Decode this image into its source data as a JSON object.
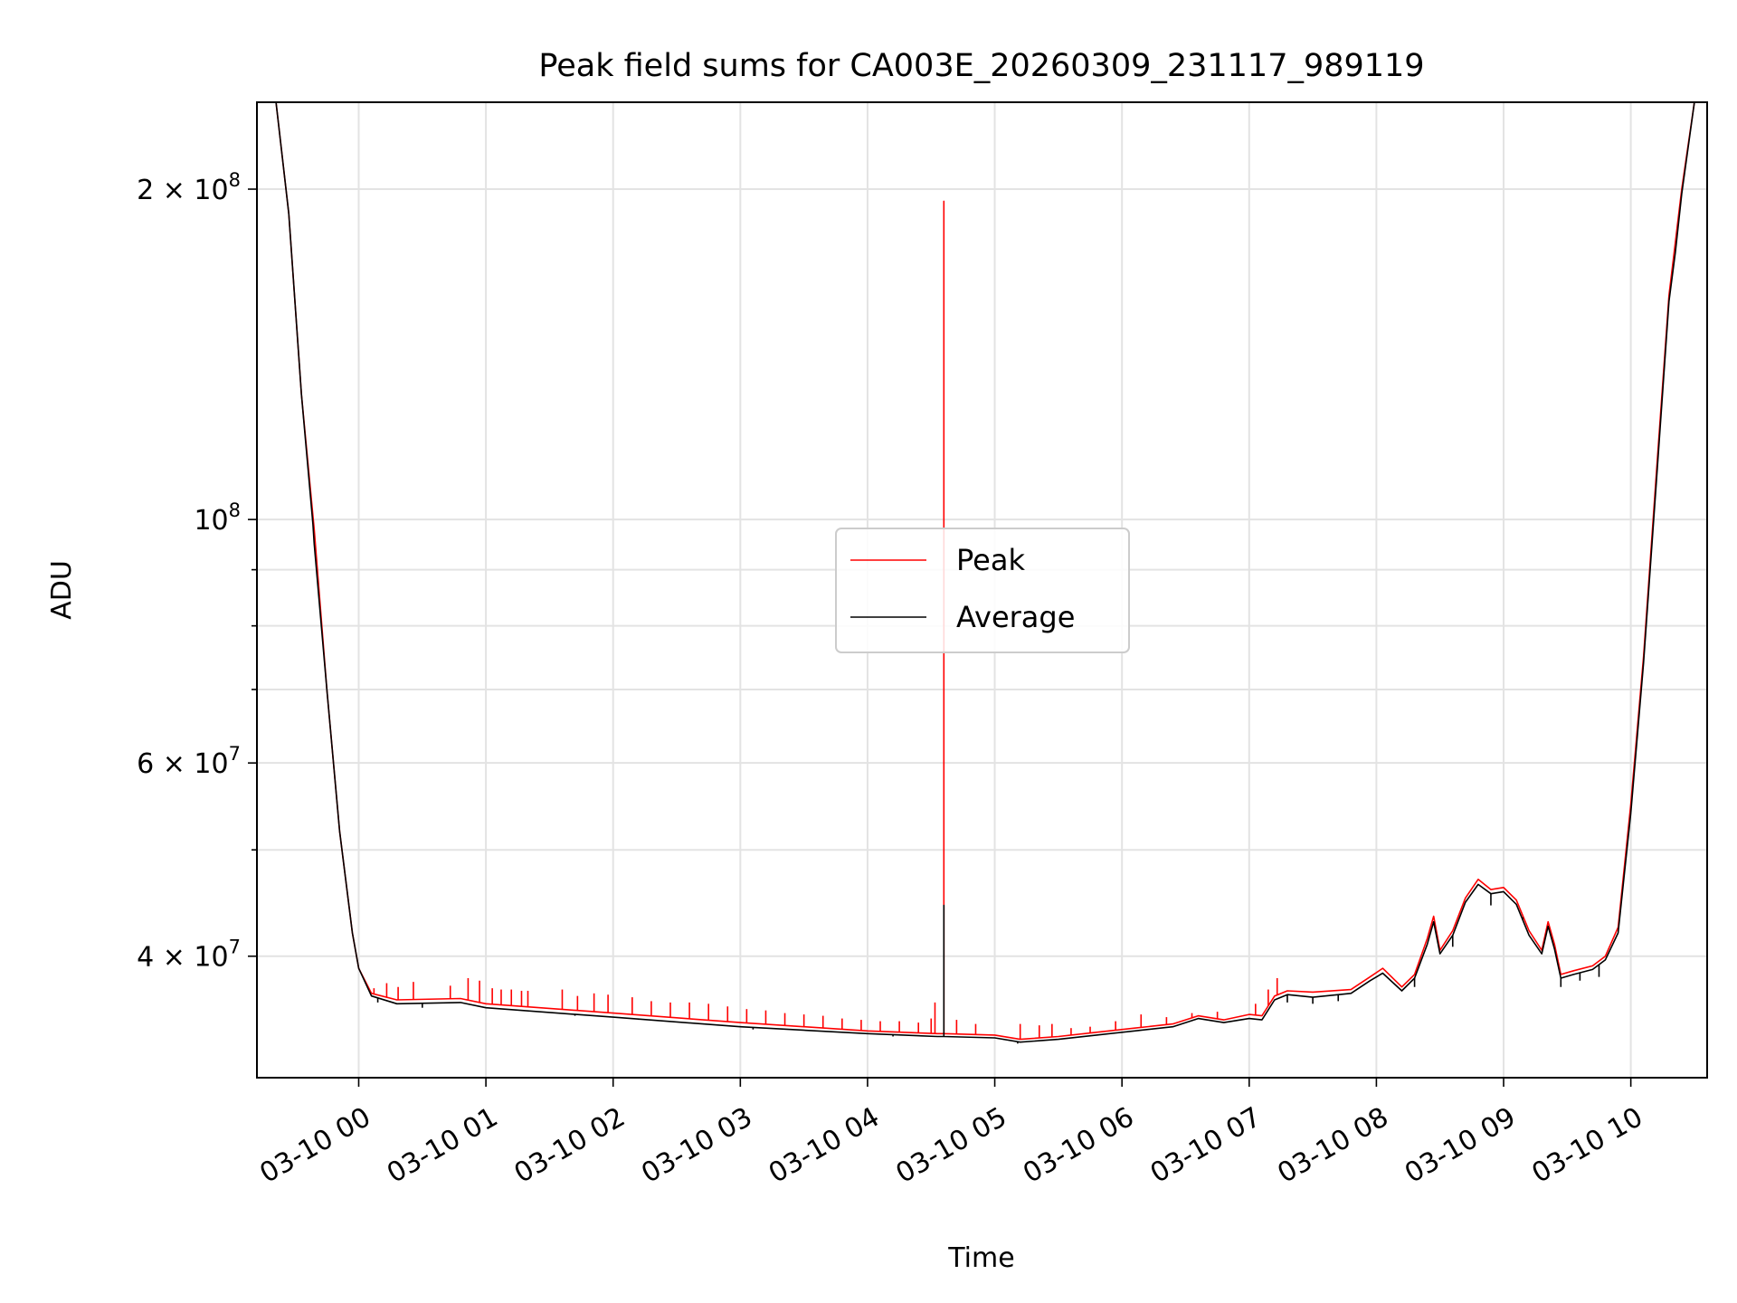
{
  "chart_data": {
    "type": "line",
    "title": "Peak field sums for CA003E_20260309_231117_989119",
    "xlabel": "Time",
    "ylabel": "ADU",
    "y_scale": "log",
    "xlim_hours": [
      -0.8,
      10.6
    ],
    "ylim": [
      31000000,
      240000000
    ],
    "x_ticks": [
      {
        "hour": 0,
        "label": "03-10 00"
      },
      {
        "hour": 1,
        "label": "03-10 01"
      },
      {
        "hour": 2,
        "label": "03-10 02"
      },
      {
        "hour": 3,
        "label": "03-10 03"
      },
      {
        "hour": 4,
        "label": "03-10 04"
      },
      {
        "hour": 5,
        "label": "03-10 05"
      },
      {
        "hour": 6,
        "label": "03-10 06"
      },
      {
        "hour": 7,
        "label": "03-10 07"
      },
      {
        "hour": 8,
        "label": "03-10 08"
      },
      {
        "hour": 9,
        "label": "03-10 09"
      },
      {
        "hour": 10,
        "label": "03-10 10"
      }
    ],
    "y_major_ticks": [
      {
        "value": 200000000,
        "mantissa": "2 × 10",
        "exp": "8"
      },
      {
        "value": 100000000,
        "mantissa": "10",
        "exp": "8"
      },
      {
        "value": 60000000,
        "mantissa": "6 × 10",
        "exp": "7"
      },
      {
        "value": 40000000,
        "mantissa": "4 × 10",
        "exp": "7"
      }
    ],
    "y_minor_ticks": [
      300000000,
      90000000,
      80000000,
      70000000,
      50000000,
      30000000
    ],
    "legend": {
      "location": "center",
      "entries": [
        {
          "name": "Peak",
          "color": "#ff0000"
        },
        {
          "name": "Average",
          "color": "#000000"
        }
      ]
    },
    "series": [
      {
        "name": "Peak",
        "color": "#ff0000",
        "points": [
          [
            -0.8,
            240000000
          ],
          [
            -0.65,
            240000000
          ],
          [
            -0.55,
            190000000
          ],
          [
            -0.45,
            130000000
          ],
          [
            -0.35,
            98000000
          ],
          [
            -0.25,
            70000000
          ],
          [
            -0.15,
            52000000
          ],
          [
            -0.05,
            42000000
          ],
          [
            0.0,
            39000000
          ],
          [
            0.1,
            37000000
          ],
          [
            0.3,
            36500000
          ],
          [
            0.8,
            36600000
          ],
          [
            1.0,
            36200000
          ],
          [
            2.0,
            35500000
          ],
          [
            3.0,
            34800000
          ],
          [
            4.0,
            34200000
          ],
          [
            4.55,
            34000000
          ],
          [
            4.6,
            34000000
          ],
          [
            4.6,
            195000000
          ],
          [
            4.6,
            34000000
          ],
          [
            5.0,
            33900000
          ],
          [
            5.2,
            33600000
          ],
          [
            5.5,
            33800000
          ],
          [
            5.8,
            34100000
          ],
          [
            6.1,
            34400000
          ],
          [
            6.4,
            34700000
          ],
          [
            6.6,
            35300000
          ],
          [
            6.8,
            35000000
          ],
          [
            7.0,
            35400000
          ],
          [
            7.1,
            35300000
          ],
          [
            7.2,
            36800000
          ],
          [
            7.3,
            37200000
          ],
          [
            7.5,
            37100000
          ],
          [
            7.8,
            37300000
          ],
          [
            7.95,
            38300000
          ],
          [
            8.05,
            39000000
          ],
          [
            8.2,
            37500000
          ],
          [
            8.3,
            38500000
          ],
          [
            8.4,
            41500000
          ],
          [
            8.45,
            43500000
          ],
          [
            8.5,
            40500000
          ],
          [
            8.6,
            42200000
          ],
          [
            8.7,
            45200000
          ],
          [
            8.8,
            47000000
          ],
          [
            8.9,
            46000000
          ],
          [
            9.0,
            46200000
          ],
          [
            9.1,
            45000000
          ],
          [
            9.2,
            42200000
          ],
          [
            9.3,
            40500000
          ],
          [
            9.35,
            43000000
          ],
          [
            9.4,
            41000000
          ],
          [
            9.45,
            38500000
          ],
          [
            9.55,
            38800000
          ],
          [
            9.7,
            39200000
          ],
          [
            9.8,
            40000000
          ],
          [
            9.9,
            42500000
          ],
          [
            10.0,
            55000000
          ],
          [
            10.1,
            75000000
          ],
          [
            10.2,
            110000000
          ],
          [
            10.3,
            160000000
          ],
          [
            10.4,
            200000000
          ],
          [
            10.5,
            240000000
          ],
          [
            10.6,
            240000000
          ]
        ]
      },
      {
        "name": "Average",
        "color": "#000000",
        "points": [
          [
            -0.8,
            240000000
          ],
          [
            -0.65,
            240000000
          ],
          [
            -0.55,
            190000000
          ],
          [
            -0.45,
            130000000
          ],
          [
            -0.36,
            99000000
          ],
          [
            -0.35,
            95000000
          ],
          [
            -0.25,
            70000000
          ],
          [
            -0.15,
            52000000
          ],
          [
            -0.05,
            42000000
          ],
          [
            0.0,
            39000000
          ],
          [
            0.1,
            36800000
          ],
          [
            0.3,
            36200000
          ],
          [
            0.8,
            36300000
          ],
          [
            1.0,
            35900000
          ],
          [
            2.0,
            35200000
          ],
          [
            3.0,
            34500000
          ],
          [
            4.0,
            34000000
          ],
          [
            4.55,
            33800000
          ],
          [
            4.6,
            33800000
          ],
          [
            4.6,
            44500000
          ],
          [
            4.6,
            33800000
          ],
          [
            5.0,
            33700000
          ],
          [
            5.2,
            33400000
          ],
          [
            5.5,
            33600000
          ],
          [
            5.8,
            33900000
          ],
          [
            6.1,
            34200000
          ],
          [
            6.4,
            34500000
          ],
          [
            6.6,
            35100000
          ],
          [
            6.8,
            34800000
          ],
          [
            7.0,
            35100000
          ],
          [
            7.1,
            35000000
          ],
          [
            7.2,
            36500000
          ],
          [
            7.3,
            36900000
          ],
          [
            7.5,
            36700000
          ],
          [
            7.8,
            37000000
          ],
          [
            7.95,
            38000000
          ],
          [
            8.05,
            38600000
          ],
          [
            8.2,
            37200000
          ],
          [
            8.3,
            38200000
          ],
          [
            8.4,
            41000000
          ],
          [
            8.45,
            43000000
          ],
          [
            8.5,
            40200000
          ],
          [
            8.6,
            41800000
          ],
          [
            8.7,
            44800000
          ],
          [
            8.8,
            46500000
          ],
          [
            8.9,
            45600000
          ],
          [
            9.0,
            45800000
          ],
          [
            9.1,
            44600000
          ],
          [
            9.2,
            41800000
          ],
          [
            9.3,
            40200000
          ],
          [
            9.35,
            42600000
          ],
          [
            9.4,
            40600000
          ],
          [
            9.45,
            38200000
          ],
          [
            9.55,
            38500000
          ],
          [
            9.7,
            38900000
          ],
          [
            9.8,
            39700000
          ],
          [
            9.9,
            42000000
          ],
          [
            10.0,
            54000000
          ],
          [
            10.1,
            74000000
          ],
          [
            10.2,
            108000000
          ],
          [
            10.3,
            158000000
          ],
          [
            10.35,
            175000000
          ],
          [
            10.4,
            198000000
          ],
          [
            10.5,
            240000000
          ],
          [
            10.6,
            240000000
          ]
        ]
      }
    ],
    "peak_spikes": [
      [
        0.12,
        37400000
      ],
      [
        0.22,
        37800000
      ],
      [
        0.31,
        37500000
      ],
      [
        0.43,
        37900000
      ],
      [
        0.72,
        37600000
      ],
      [
        0.86,
        38200000
      ],
      [
        0.95,
        38000000
      ],
      [
        1.05,
        37400000
      ],
      [
        1.12,
        37300000
      ],
      [
        1.2,
        37300000
      ],
      [
        1.28,
        37200000
      ],
      [
        1.33,
        37200000
      ],
      [
        1.6,
        37300000
      ],
      [
        1.72,
        36800000
      ],
      [
        1.85,
        37000000
      ],
      [
        1.96,
        36900000
      ],
      [
        2.15,
        36700000
      ],
      [
        2.3,
        36400000
      ],
      [
        2.45,
        36300000
      ],
      [
        2.6,
        36300000
      ],
      [
        2.75,
        36200000
      ],
      [
        2.9,
        36000000
      ],
      [
        3.05,
        35800000
      ],
      [
        3.2,
        35700000
      ],
      [
        3.35,
        35500000
      ],
      [
        3.5,
        35400000
      ],
      [
        3.65,
        35300000
      ],
      [
        3.8,
        35100000
      ],
      [
        3.95,
        35000000
      ],
      [
        4.1,
        34900000
      ],
      [
        4.25,
        34900000
      ],
      [
        4.4,
        34800000
      ],
      [
        4.5,
        35100000
      ],
      [
        4.53,
        36300000
      ],
      [
        4.7,
        35000000
      ],
      [
        4.85,
        34700000
      ],
      [
        5.2,
        34700000
      ],
      [
        5.35,
        34600000
      ],
      [
        5.45,
        34700000
      ],
      [
        5.6,
        34400000
      ],
      [
        5.75,
        34500000
      ],
      [
        5.95,
        34900000
      ],
      [
        6.15,
        35400000
      ],
      [
        6.35,
        35200000
      ],
      [
        6.55,
        35500000
      ],
      [
        6.75,
        35600000
      ],
      [
        7.05,
        36200000
      ],
      [
        7.15,
        37300000
      ],
      [
        7.22,
        38200000
      ]
    ],
    "average_dips": [
      [
        0.15,
        36300000
      ],
      [
        0.5,
        35900000
      ],
      [
        1.7,
        35300000
      ],
      [
        2.2,
        35000000
      ],
      [
        3.1,
        34300000
      ],
      [
        4.2,
        33800000
      ],
      [
        5.18,
        33300000
      ],
      [
        7.3,
        36300000
      ],
      [
        7.5,
        36200000
      ],
      [
        7.7,
        36400000
      ],
      [
        8.3,
        37500000
      ],
      [
        8.6,
        40800000
      ],
      [
        8.9,
        44500000
      ],
      [
        9.15,
        43400000
      ],
      [
        9.45,
        37500000
      ],
      [
        9.6,
        38000000
      ],
      [
        9.75,
        38300000
      ]
    ]
  }
}
